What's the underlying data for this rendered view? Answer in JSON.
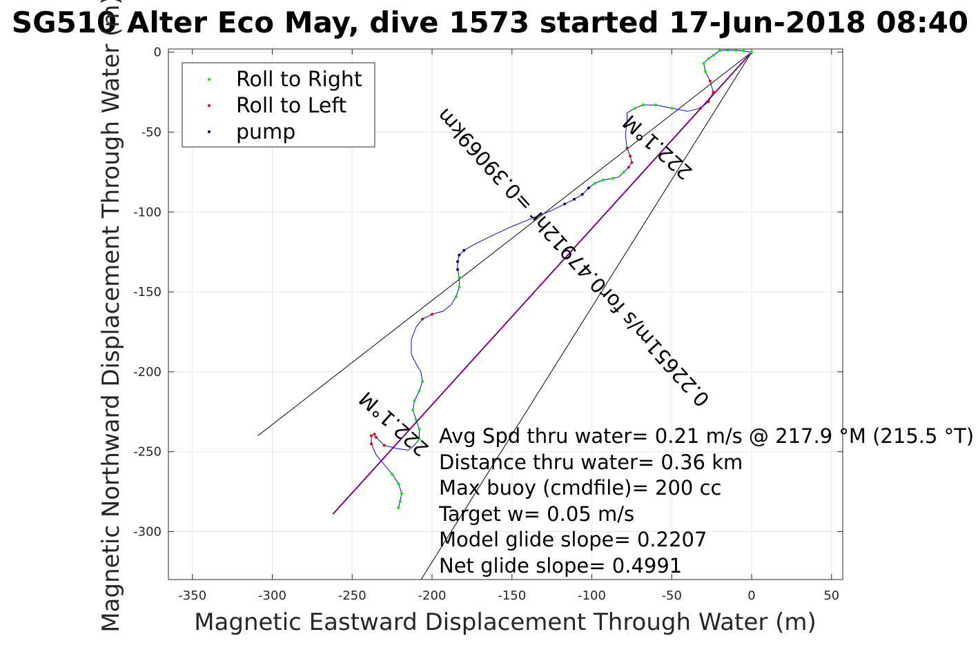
{
  "chart_data": {
    "type": "scatter",
    "title": "SG510 Alter Eco May, dive 1573 started 17-Jun-2018 08:40",
    "xlabel": "Magnetic Eastward Displacement Through Water (m)",
    "ylabel": "Magnetic Northward Displacement Through Water (m)",
    "xlim": [
      -365,
      57
    ],
    "ylim": [
      -330,
      2
    ],
    "xticks": [
      -350,
      -300,
      -250,
      -200,
      -150,
      -100,
      -50,
      0,
      50
    ],
    "yticks": [
      0,
      -50,
      -100,
      -150,
      -200,
      -250,
      -300
    ],
    "grid": true,
    "legend_position": "top-left",
    "legend": [
      "Roll to Right",
      "Roll to Left",
      "pump"
    ],
    "colors": {
      "roll_right": "#00ee00",
      "roll_left": "#ee0000",
      "pump": "#000060",
      "track": "#0000ff",
      "net_line": "#cc00cc",
      "cone_lines": "#000000"
    },
    "track_path": [
      [
        0,
        0
      ],
      [
        -5,
        0.8
      ],
      [
        -10,
        1.2
      ],
      [
        -15,
        1.3
      ],
      [
        -20,
        1.0
      ],
      [
        -24,
        -2
      ],
      [
        -27,
        -4
      ],
      [
        -30,
        -7
      ],
      [
        -29,
        -12
      ],
      [
        -26,
        -18
      ],
      [
        -24,
        -25
      ],
      [
        -27,
        -31
      ],
      [
        -32,
        -35
      ],
      [
        -40,
        -37
      ],
      [
        -50,
        -35
      ],
      [
        -60,
        -33
      ],
      [
        -68,
        -33
      ],
      [
        -73,
        -35
      ],
      [
        -78,
        -38
      ],
      [
        -78,
        -43
      ],
      [
        -79,
        -52
      ],
      [
        -78,
        -60
      ],
      [
        -76,
        -65
      ],
      [
        -75,
        -69
      ],
      [
        -77,
        -72
      ],
      [
        -80,
        -75
      ],
      [
        -83,
        -78
      ],
      [
        -87,
        -79
      ],
      [
        -93,
        -80
      ],
      [
        -98,
        -82
      ],
      [
        -102,
        -85
      ],
      [
        -106,
        -89
      ],
      [
        -111,
        -92
      ],
      [
        -117,
        -95
      ],
      [
        -125,
        -99
      ],
      [
        -135,
        -103
      ],
      [
        -150,
        -109
      ],
      [
        -165,
        -116
      ],
      [
        -175,
        -121
      ],
      [
        -180,
        -124
      ],
      [
        -183,
        -127
      ],
      [
        -184,
        -131
      ],
      [
        -184,
        -136
      ],
      [
        -183,
        -141
      ],
      [
        -183,
        -147
      ],
      [
        -185,
        -153
      ],
      [
        -188,
        -158
      ],
      [
        -193,
        -162
      ],
      [
        -200,
        -164
      ],
      [
        -206,
        -167
      ],
      [
        -210,
        -172
      ],
      [
        -213,
        -180
      ],
      [
        -213,
        -189
      ],
      [
        -210,
        -195
      ],
      [
        -207,
        -200
      ],
      [
        -206,
        -206
      ],
      [
        -208,
        -212
      ],
      [
        -211,
        -218
      ],
      [
        -212,
        -224
      ],
      [
        -210,
        -230
      ],
      [
        -208,
        -236
      ],
      [
        -208,
        -242
      ],
      [
        -211,
        -246
      ],
      [
        -215,
        -249
      ],
      [
        -222,
        -248
      ],
      [
        -230,
        -246
      ],
      [
        -235,
        -241
      ],
      [
        -236,
        -239
      ],
      [
        -238,
        -240
      ],
      [
        -238,
        -245
      ],
      [
        -235,
        -252
      ],
      [
        -230,
        -258
      ],
      [
        -225,
        -264
      ],
      [
        -221,
        -270
      ],
      [
        -219,
        -276
      ],
      [
        -220,
        -281
      ],
      [
        -221,
        -285
      ]
    ],
    "roll_right_points": [
      [
        0,
        0
      ],
      [
        -5,
        0.8
      ],
      [
        -10,
        1.2
      ],
      [
        -15,
        1.3
      ],
      [
        -20,
        1.0
      ],
      [
        -24,
        -2
      ],
      [
        -27,
        -4
      ],
      [
        -30,
        -7
      ],
      [
        -29,
        -12
      ],
      [
        -50,
        -35
      ],
      [
        -60,
        -33
      ],
      [
        -68,
        -33
      ],
      [
        -73,
        -35
      ],
      [
        -80,
        -75
      ],
      [
        -87,
        -79
      ],
      [
        -93,
        -80
      ],
      [
        -98,
        -82
      ],
      [
        -183,
        -141
      ],
      [
        -183,
        -147
      ],
      [
        -185,
        -153
      ],
      [
        -206,
        -206
      ],
      [
        -208,
        -212
      ],
      [
        -211,
        -218
      ],
      [
        -212,
        -224
      ],
      [
        -210,
        -230
      ],
      [
        -208,
        -236
      ],
      [
        -208,
        -242
      ],
      [
        -225,
        -264
      ],
      [
        -221,
        -270
      ],
      [
        -219,
        -276
      ],
      [
        -220,
        -281
      ],
      [
        -221,
        -285
      ]
    ],
    "roll_left_points": [
      [
        -26,
        -18
      ],
      [
        -24,
        -25
      ],
      [
        -27,
        -31
      ],
      [
        -32,
        -35
      ],
      [
        -78,
        -60
      ],
      [
        -76,
        -65
      ],
      [
        -75,
        -69
      ],
      [
        -77,
        -72
      ],
      [
        -200,
        -164
      ],
      [
        -206,
        -167
      ],
      [
        -230,
        -246
      ],
      [
        -235,
        -241
      ],
      [
        -236,
        -239
      ],
      [
        -238,
        -240
      ],
      [
        -238,
        -245
      ]
    ],
    "pump_points": [
      [
        -102,
        -85
      ],
      [
        -106,
        -89
      ],
      [
        -111,
        -92
      ],
      [
        -117,
        -95
      ],
      [
        -180,
        -124
      ],
      [
        -183,
        -127
      ],
      [
        -184,
        -131
      ],
      [
        -184,
        -136
      ]
    ],
    "net_line": [
      [
        0,
        0
      ],
      [
        -262,
        -289
      ]
    ],
    "cone_lines": [
      [
        [
          0,
          0
        ],
        [
          -309,
          -240
        ]
      ],
      [
        [
          0,
          0
        ],
        [
          -210,
          -335
        ]
      ]
    ],
    "rotated_labels": [
      "222.1°M",
      "0.22651m/s for0.47912hr =0.39069km",
      "222.1°M"
    ],
    "annotations": [
      "Avg Spd thru water=  0.21 m/s @ 217.9 °M (215.5 °T)",
      "Distance thru water=  0.36 km",
      "Max buoy (cmdfile)= 200 cc",
      "Target w= 0.05 m/s",
      "Model glide slope= 0.2207",
      "Net glide slope= 0.4991"
    ]
  }
}
